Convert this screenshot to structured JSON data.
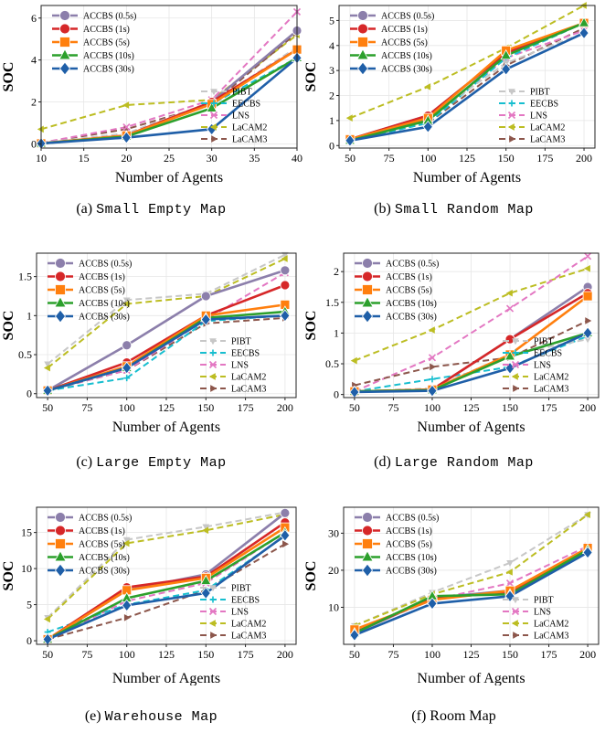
{
  "styles": {
    "ACCBS (0.5s)": {
      "color": "#8c7fab",
      "marker": "circle"
    },
    "ACCBS (1s)": {
      "color": "#d62728",
      "marker": "circle"
    },
    "ACCBS (5s)": {
      "color": "#ff7f0e",
      "marker": "square"
    },
    "ACCBS (10s)": {
      "color": "#2ca02c",
      "marker": "triangle-up"
    },
    "ACCBS (30s)": {
      "color": "#1f5fa8",
      "marker": "diamond"
    },
    "PIBT": {
      "color": "#c7c7c7",
      "marker": "triangle-down"
    },
    "EECBS": {
      "color": "#17becf",
      "marker": "plus"
    },
    "LNS": {
      "color": "#e377c2",
      "marker": "x"
    },
    "LaCAM2": {
      "color": "#bcbd22",
      "marker": "triangle-left"
    },
    "LaCAM3": {
      "color": "#8c564b",
      "marker": "triangle-right"
    }
  },
  "chart_data": [
    {
      "type": "line",
      "caption_prefix": "(a)",
      "caption_name": "Small Empty Map",
      "xlabel": "Number of Agents",
      "ylabel": "SOC",
      "xlim": [
        10,
        40
      ],
      "ylim": [
        -0.2,
        6.6
      ],
      "xticks": [
        10,
        15,
        20,
        25,
        30,
        35,
        40
      ],
      "yticks": [
        0,
        2,
        4,
        6
      ],
      "x": [
        10,
        20,
        30,
        40
      ],
      "legend_left": [
        "ACCBS (0.5s)",
        "ACCBS (1s)",
        "ACCBS (5s)",
        "ACCBS (10s)",
        "ACCBS (30s)"
      ],
      "legend_right": [
        "PIBT",
        "EECBS",
        "LNS",
        "LaCAM2",
        "LaCAM3"
      ],
      "series": [
        {
          "name": "LaCAM2",
          "values": [
            0.7,
            1.85,
            2.1,
            5.2
          ]
        },
        {
          "name": "LaCAM3",
          "values": [
            0.05,
            0.7,
            1.9,
            5.3
          ]
        },
        {
          "name": "LNS",
          "values": [
            0.05,
            0.8,
            2.1,
            6.3
          ]
        },
        {
          "name": "EECBS",
          "values": [
            0.02,
            0.4,
            1.9,
            4.1
          ]
        },
        {
          "name": "PIBT",
          "values": [
            0.05,
            0.5,
            2.0,
            4.6
          ]
        },
        {
          "name": "ACCBS (0.5s)",
          "values": [
            0.02,
            0.4,
            2.0,
            5.4
          ]
        },
        {
          "name": "ACCBS (1s)",
          "values": [
            0.02,
            0.4,
            2.0,
            4.5
          ]
        },
        {
          "name": "ACCBS (5s)",
          "values": [
            0.02,
            0.4,
            1.9,
            4.5
          ]
        },
        {
          "name": "ACCBS (10s)",
          "values": [
            0.02,
            0.35,
            1.7,
            4.1
          ]
        },
        {
          "name": "ACCBS (30s)",
          "values": [
            0.02,
            0.3,
            0.7,
            4.1
          ]
        }
      ]
    },
    {
      "type": "line",
      "caption_prefix": "(b)",
      "caption_name": "Small Random Map",
      "xlabel": "Number of Agents",
      "ylabel": "SOC",
      "xlim": [
        43,
        207
      ],
      "ylim": [
        -0.1,
        5.6
      ],
      "xticks": [
        50,
        75,
        100,
        125,
        150,
        175,
        200
      ],
      "yticks": [
        0,
        1,
        2,
        3,
        4,
        5
      ],
      "x": [
        50,
        100,
        150,
        200
      ],
      "legend_left": [
        "ACCBS (0.5s)",
        "ACCBS (1s)",
        "ACCBS (5s)",
        "ACCBS (10s)",
        "ACCBS (30s)"
      ],
      "legend_right": [
        "PIBT",
        "EECBS",
        "LNS",
        "LaCAM2",
        "LaCAM3"
      ],
      "series": [
        {
          "name": "LaCAM2",
          "values": [
            1.1,
            2.35,
            3.9,
            5.6
          ]
        },
        {
          "name": "LaCAM3",
          "values": [
            0.25,
            0.9,
            3.2,
            4.7
          ]
        },
        {
          "name": "LNS",
          "values": [
            0.25,
            1.0,
            3.5,
            4.6
          ]
        },
        {
          "name": "EECBS",
          "values": [
            0.2,
            0.9,
            3.5,
            4.9
          ]
        },
        {
          "name": "PIBT",
          "values": [
            0.2,
            1.1,
            3.3,
            4.5
          ]
        },
        {
          "name": "ACCBS (0.5s)",
          "values": [
            0.25,
            1.2,
            3.7,
            4.9
          ]
        },
        {
          "name": "ACCBS (1s)",
          "values": [
            0.25,
            1.2,
            3.7,
            4.9
          ]
        },
        {
          "name": "ACCBS (5s)",
          "values": [
            0.25,
            1.1,
            3.8,
            4.9
          ]
        },
        {
          "name": "ACCBS (10s)",
          "values": [
            0.2,
            1.0,
            3.6,
            4.9
          ]
        },
        {
          "name": "ACCBS (30s)",
          "values": [
            0.2,
            0.75,
            3.05,
            4.5
          ]
        }
      ]
    },
    {
      "type": "line",
      "caption_prefix": "(c)",
      "caption_name": "Large Empty Map",
      "xlabel": "Number of Agents",
      "ylabel": "SOC",
      "xlim": [
        43,
        207
      ],
      "ylim": [
        -0.05,
        1.8
      ],
      "xticks": [
        50,
        75,
        100,
        125,
        150,
        175,
        200
      ],
      "yticks": [
        0.0,
        0.5,
        1.0,
        1.5
      ],
      "x": [
        50,
        100,
        150,
        200
      ],
      "legend_left": [
        "ACCBS (0.5s)",
        "ACCBS (1s)",
        "ACCBS (5s)",
        "ACCBS (10s)",
        "ACCBS (30s)"
      ],
      "legend_right": [
        "PIBT",
        "EECBS",
        "LNS",
        "LaCAM2",
        "LaCAM3"
      ],
      "series": [
        {
          "name": "PIBT",
          "values": [
            0.38,
            1.2,
            1.28,
            1.78
          ]
        },
        {
          "name": "LaCAM2",
          "values": [
            0.33,
            1.15,
            1.25,
            1.73
          ]
        },
        {
          "name": "LaCAM3",
          "values": [
            0.04,
            0.3,
            0.9,
            0.97
          ]
        },
        {
          "name": "LNS",
          "values": [
            0.04,
            0.3,
            0.95,
            1.55
          ]
        },
        {
          "name": "EECBS",
          "values": [
            0.04,
            0.2,
            0.93,
            1.0
          ]
        },
        {
          "name": "ACCBS (0.5s)",
          "values": [
            0.04,
            0.62,
            1.25,
            1.58
          ]
        },
        {
          "name": "ACCBS (1s)",
          "values": [
            0.04,
            0.4,
            1.0,
            1.39
          ]
        },
        {
          "name": "ACCBS (5s)",
          "values": [
            0.04,
            0.35,
            1.0,
            1.14
          ]
        },
        {
          "name": "ACCBS (10s)",
          "values": [
            0.04,
            0.33,
            0.97,
            1.05
          ]
        },
        {
          "name": "ACCBS (30s)",
          "values": [
            0.04,
            0.33,
            0.95,
            1.0
          ]
        }
      ]
    },
    {
      "type": "line",
      "caption_prefix": "(d)",
      "caption_name": "Large Random Map",
      "xlabel": "Number of Agents",
      "ylabel": "SOC",
      "xlim": [
        43,
        207
      ],
      "ylim": [
        -0.05,
        2.3
      ],
      "xticks": [
        50,
        75,
        100,
        125,
        150,
        175,
        200
      ],
      "yticks": [
        0.0,
        0.5,
        1.0,
        1.5,
        2.0
      ],
      "x": [
        50,
        100,
        150,
        200
      ],
      "legend_left": [
        "ACCBS (0.5s)",
        "ACCBS (1s)",
        "ACCBS (5s)",
        "ACCBS (10s)",
        "ACCBS (30s)"
      ],
      "legend_right": [
        "PIBT",
        "EECBS",
        "LNS",
        "LaCAM2",
        "LaCAM3"
      ],
      "series": [
        {
          "name": "LaCAM2",
          "values": [
            0.55,
            1.05,
            1.65,
            2.05
          ]
        },
        {
          "name": "LNS",
          "values": [
            0.05,
            0.6,
            1.4,
            2.25
          ]
        },
        {
          "name": "LaCAM3",
          "values": [
            0.15,
            0.45,
            0.6,
            1.2
          ]
        },
        {
          "name": "EECBS",
          "values": [
            0.05,
            0.25,
            0.45,
            0.95
          ]
        },
        {
          "name": "PIBT",
          "values": [
            0.05,
            0.1,
            0.65,
            0.9
          ]
        },
        {
          "name": "ACCBS (0.5s)",
          "values": [
            0.05,
            0.08,
            0.9,
            1.75
          ]
        },
        {
          "name": "ACCBS (1s)",
          "values": [
            0.05,
            0.08,
            0.9,
            1.65
          ]
        },
        {
          "name": "ACCBS (5s)",
          "values": [
            0.05,
            0.08,
            0.65,
            1.6
          ]
        },
        {
          "name": "ACCBS (10s)",
          "values": [
            0.05,
            0.07,
            0.62,
            1.0
          ]
        },
        {
          "name": "ACCBS (30s)",
          "values": [
            0.04,
            0.06,
            0.43,
            1.0
          ]
        }
      ]
    },
    {
      "type": "line",
      "caption_prefix": "(e)",
      "caption_name": "Warehouse Map",
      "xlabel": "Number of Agents",
      "ylabel": "SOC",
      "xlim": [
        43,
        207
      ],
      "ylim": [
        -0.5,
        18.5
      ],
      "xticks": [
        50,
        75,
        100,
        125,
        150,
        175,
        200
      ],
      "yticks": [
        0,
        5,
        10,
        15
      ],
      "x": [
        50,
        100,
        150,
        200
      ],
      "legend_left": [
        "ACCBS (0.5s)",
        "ACCBS (1s)",
        "ACCBS (5s)",
        "ACCBS (10s)",
        "ACCBS (30s)"
      ],
      "legend_right": [
        "PIBT",
        "EECBS",
        "LNS",
        "LaCAM2",
        "LaCAM3"
      ],
      "series": [
        {
          "name": "PIBT",
          "values": [
            3.2,
            14.0,
            15.8,
            17.8
          ]
        },
        {
          "name": "LaCAM2",
          "values": [
            3.0,
            13.5,
            15.3,
            17.5
          ]
        },
        {
          "name": "LaCAM3",
          "values": [
            0.2,
            3.2,
            7.0,
            13.4
          ]
        },
        {
          "name": "LNS",
          "values": [
            0.2,
            5.5,
            8.0,
            15.0
          ]
        },
        {
          "name": "EECBS",
          "values": [
            1.2,
            5.0,
            7.0,
            14.5
          ]
        },
        {
          "name": "ACCBS (0.5s)",
          "values": [
            0.2,
            7.0,
            9.2,
            17.7
          ]
        },
        {
          "name": "ACCBS (1s)",
          "values": [
            0.2,
            7.4,
            8.9,
            16.4
          ]
        },
        {
          "name": "ACCBS (5s)",
          "values": [
            0.2,
            7.0,
            8.7,
            15.7
          ]
        },
        {
          "name": "ACCBS (10s)",
          "values": [
            0.2,
            5.9,
            8.3,
            15.0
          ]
        },
        {
          "name": "ACCBS (30s)",
          "values": [
            0.2,
            4.9,
            6.6,
            14.6
          ]
        }
      ]
    },
    {
      "type": "line",
      "caption_prefix": "(f)",
      "caption_name": "Room Map",
      "xlabel": "Number of Agents",
      "ylabel": "SOC",
      "xlim": [
        43,
        207
      ],
      "ylim": [
        0,
        37
      ],
      "xticks": [
        50,
        75,
        100,
        125,
        150,
        175,
        200
      ],
      "yticks": [
        10,
        20,
        30
      ],
      "x": [
        50,
        100,
        150,
        200
      ],
      "legend_left": [
        "ACCBS (0.5s)",
        "ACCBS (1s)",
        "ACCBS (5s)",
        "ACCBS (10s)",
        "ACCBS (30s)"
      ],
      "legend_right": [
        "PIBT",
        "LNS",
        "LaCAM2",
        "LaCAM3"
      ],
      "series": [
        {
          "name": "PIBT",
          "values": [
            5.0,
            14.0,
            22.0,
            35.0
          ]
        },
        {
          "name": "LaCAM2",
          "values": [
            5.0,
            13.5,
            19.5,
            35.0
          ]
        },
        {
          "name": "LaCAM3",
          "values": [
            3.5,
            12.0,
            14.5,
            26.0
          ]
        },
        {
          "name": "LNS",
          "values": [
            3.5,
            12.0,
            16.5,
            26.5
          ]
        },
        {
          "name": "ACCBS (0.5s)",
          "values": [
            3.0,
            12.5,
            14.5,
            25.5
          ]
        },
        {
          "name": "ACCBS (1s)",
          "values": [
            3.2,
            12.5,
            14.0,
            25.5
          ]
        },
        {
          "name": "ACCBS (5s)",
          "values": [
            4.0,
            12.0,
            14.5,
            26.0
          ]
        },
        {
          "name": "ACCBS (10s)",
          "values": [
            3.0,
            13.0,
            13.5,
            25.5
          ]
        },
        {
          "name": "ACCBS (30s)",
          "values": [
            2.5,
            11.0,
            13.0,
            24.8
          ]
        }
      ]
    }
  ]
}
